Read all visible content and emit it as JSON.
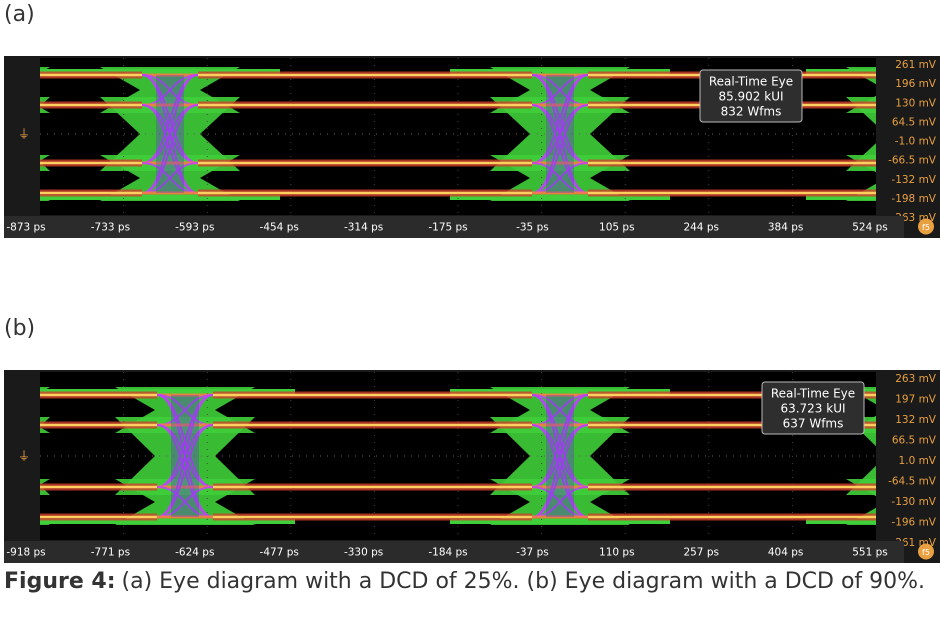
{
  "panels": [
    {
      "label": "(a)",
      "info_box": [
        "Real-Time Eye",
        "85.902 kUI",
        "832 Wfms"
      ],
      "y_labels": [
        "261 mV",
        "196 mV",
        "130 mV",
        "64.5 mV",
        "-1.0 mV",
        "-66.5 mV",
        "-132 mV",
        "-198 mV",
        "-263 mV"
      ],
      "x_labels": [
        "-873 ps",
        "-733 ps",
        "-593 ps",
        "-454 ps",
        "-314 ps",
        "-175 ps",
        "-35 ps",
        "105 ps",
        "244 ps",
        "384 ps",
        "524 ps"
      ],
      "badge": "f5"
    },
    {
      "label": "(b)",
      "info_box": [
        "Real-Time Eye",
        "63.723 kUI",
        "637 Wfms"
      ],
      "y_labels": [
        "263 mV",
        "197 mV",
        "132 mV",
        "66.5 mV",
        "1.0 mV",
        "-64.5 mV",
        "-130 mV",
        "-196 mV",
        "-261 mV"
      ],
      "x_labels": [
        "-918 ps",
        "-771 ps",
        "-624 ps",
        "-477 ps",
        "-330 ps",
        "-184 ps",
        "-37 ps",
        "110 ps",
        "257 ps",
        "404 ps",
        "551 ps"
      ],
      "badge": "f5"
    }
  ],
  "caption": {
    "lead": "Figure 4:",
    "text": "(a) Eye diagram with a DCD of 25%. (b) Eye diagram with a DCD of 90%."
  }
}
